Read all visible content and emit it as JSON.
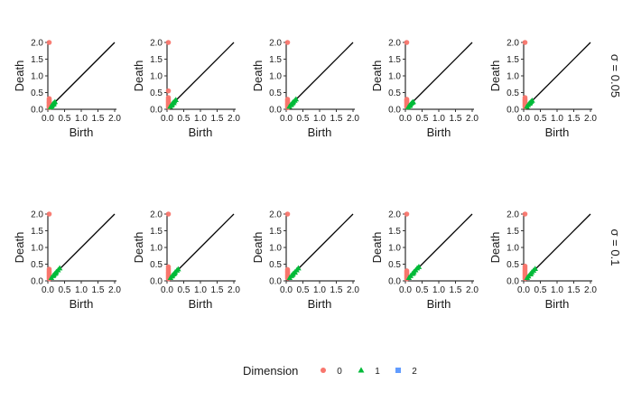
{
  "chart_data": {
    "type": "scatter",
    "layout": {
      "rows": 2,
      "cols": 5
    },
    "xlabel": "Birth",
    "ylabel": "Death",
    "xlim": [
      0,
      2
    ],
    "ylim": [
      0,
      2
    ],
    "x_ticks": [
      "0.0",
      "0.5",
      "1.0",
      "1.5",
      "2.0"
    ],
    "y_ticks": [
      "0.0",
      "0.5",
      "1.0",
      "1.5",
      "2.0"
    ],
    "x_tick_values": [
      0,
      0.5,
      1,
      1.5,
      2
    ],
    "y_tick_values": [
      0,
      0.5,
      1,
      1.5,
      2
    ],
    "diagonal": true,
    "grid": false,
    "row_labels": [
      "σ = 0.05",
      "σ = 0.1"
    ],
    "legend": {
      "title": "Dimension",
      "position": "bottom",
      "entries": [
        {
          "label": "0",
          "shape": "circle",
          "color": "#F8766D"
        },
        {
          "label": "1",
          "shape": "triangle",
          "color": "#00BA38"
        },
        {
          "label": "2",
          "shape": "square",
          "color": "#619CFF"
        }
      ]
    },
    "panels": [
      {
        "row": 0,
        "col": 0,
        "dim0": [
          [
            0,
            2.0
          ],
          [
            0,
            0.32
          ],
          [
            0,
            0.28
          ],
          [
            0,
            0.25
          ],
          [
            0,
            0.22
          ],
          [
            0,
            0.2
          ],
          [
            0,
            0.18
          ],
          [
            0,
            0.15
          ],
          [
            0,
            0.12
          ],
          [
            0,
            0.1
          ],
          [
            0,
            0.08
          ],
          [
            0,
            0.05
          ]
        ],
        "dim1": [
          [
            0.03,
            0.06
          ],
          [
            0.06,
            0.1
          ],
          [
            0.08,
            0.13
          ],
          [
            0.1,
            0.16
          ],
          [
            0.13,
            0.19
          ],
          [
            0.16,
            0.22
          ],
          [
            0.12,
            0.15
          ],
          [
            0.05,
            0.09
          ]
        ]
      },
      {
        "row": 0,
        "col": 1,
        "dim0": [
          [
            0,
            2.0
          ],
          [
            0,
            0.55
          ],
          [
            0,
            0.35
          ],
          [
            0,
            0.3
          ],
          [
            0,
            0.26
          ],
          [
            0,
            0.22
          ],
          [
            0,
            0.18
          ],
          [
            0,
            0.14
          ],
          [
            0,
            0.1
          ],
          [
            0,
            0.06
          ]
        ],
        "dim1": [
          [
            0.04,
            0.08
          ],
          [
            0.07,
            0.12
          ],
          [
            0.1,
            0.16
          ],
          [
            0.13,
            0.2
          ],
          [
            0.17,
            0.24
          ],
          [
            0.21,
            0.28
          ],
          [
            0.15,
            0.19
          ],
          [
            0.09,
            0.12
          ]
        ]
      },
      {
        "row": 0,
        "col": 2,
        "dim0": [
          [
            0,
            2.0
          ],
          [
            0,
            0.3
          ],
          [
            0,
            0.26
          ],
          [
            0,
            0.22
          ],
          [
            0,
            0.18
          ],
          [
            0,
            0.15
          ],
          [
            0,
            0.12
          ],
          [
            0,
            0.08
          ],
          [
            0,
            0.05
          ]
        ],
        "dim1": [
          [
            0.04,
            0.08
          ],
          [
            0.08,
            0.13
          ],
          [
            0.12,
            0.18
          ],
          [
            0.16,
            0.22
          ],
          [
            0.2,
            0.26
          ],
          [
            0.24,
            0.3
          ],
          [
            0.14,
            0.19
          ],
          [
            0.1,
            0.14
          ]
        ]
      },
      {
        "row": 0,
        "col": 3,
        "dim0": [
          [
            0,
            2.0
          ],
          [
            0,
            0.3
          ],
          [
            0,
            0.27
          ],
          [
            0,
            0.24
          ],
          [
            0,
            0.2
          ],
          [
            0,
            0.17
          ],
          [
            0,
            0.13
          ],
          [
            0,
            0.1
          ],
          [
            0,
            0.07
          ]
        ],
        "dim1": [
          [
            0.03,
            0.06
          ],
          [
            0.06,
            0.1
          ],
          [
            0.09,
            0.13
          ],
          [
            0.12,
            0.17
          ],
          [
            0.15,
            0.2
          ],
          [
            0.18,
            0.22
          ],
          [
            0.08,
            0.11
          ]
        ]
      },
      {
        "row": 0,
        "col": 4,
        "dim0": [
          [
            0,
            2.0
          ],
          [
            0,
            0.35
          ],
          [
            0,
            0.3
          ],
          [
            0,
            0.27
          ],
          [
            0,
            0.23
          ],
          [
            0,
            0.19
          ],
          [
            0,
            0.15
          ],
          [
            0,
            0.11
          ],
          [
            0,
            0.07
          ]
        ],
        "dim1": [
          [
            0.04,
            0.08
          ],
          [
            0.08,
            0.13
          ],
          [
            0.11,
            0.17
          ],
          [
            0.14,
            0.2
          ],
          [
            0.17,
            0.23
          ],
          [
            0.2,
            0.26
          ],
          [
            0.13,
            0.18
          ]
        ]
      },
      {
        "row": 1,
        "col": 0,
        "dim0": [
          [
            0,
            2.0
          ],
          [
            0,
            0.35
          ],
          [
            0,
            0.3
          ],
          [
            0,
            0.26
          ],
          [
            0,
            0.22
          ],
          [
            0,
            0.18
          ],
          [
            0,
            0.14
          ],
          [
            0,
            0.1
          ],
          [
            0,
            0.06
          ]
        ],
        "dim1": [
          [
            0.05,
            0.09
          ],
          [
            0.1,
            0.15
          ],
          [
            0.15,
            0.21
          ],
          [
            0.2,
            0.27
          ],
          [
            0.25,
            0.32
          ],
          [
            0.3,
            0.38
          ],
          [
            0.18,
            0.23
          ],
          [
            0.12,
            0.17
          ]
        ]
      },
      {
        "row": 1,
        "col": 1,
        "dim0": [
          [
            0,
            2.0
          ],
          [
            0,
            0.42
          ],
          [
            0,
            0.36
          ],
          [
            0,
            0.31
          ],
          [
            0,
            0.26
          ],
          [
            0,
            0.22
          ],
          [
            0,
            0.18
          ],
          [
            0,
            0.14
          ],
          [
            0,
            0.1
          ],
          [
            0,
            0.06
          ]
        ],
        "dim1": [
          [
            0.05,
            0.09
          ],
          [
            0.09,
            0.14
          ],
          [
            0.14,
            0.2
          ],
          [
            0.19,
            0.26
          ],
          [
            0.24,
            0.31
          ],
          [
            0.28,
            0.35
          ],
          [
            0.17,
            0.22
          ],
          [
            0.11,
            0.16
          ]
        ]
      },
      {
        "row": 1,
        "col": 2,
        "dim0": [
          [
            0,
            2.0
          ],
          [
            0,
            0.34
          ],
          [
            0,
            0.29
          ],
          [
            0,
            0.25
          ],
          [
            0,
            0.2
          ],
          [
            0,
            0.16
          ],
          [
            0,
            0.12
          ],
          [
            0,
            0.08
          ]
        ],
        "dim1": [
          [
            0.05,
            0.09
          ],
          [
            0.1,
            0.15
          ],
          [
            0.15,
            0.21
          ],
          [
            0.2,
            0.26
          ],
          [
            0.26,
            0.32
          ],
          [
            0.31,
            0.38
          ],
          [
            0.21,
            0.25
          ],
          [
            0.13,
            0.18
          ]
        ]
      },
      {
        "row": 1,
        "col": 3,
        "dim0": [
          [
            0,
            2.0
          ],
          [
            0,
            0.3
          ],
          [
            0,
            0.26
          ],
          [
            0,
            0.22
          ],
          [
            0,
            0.18
          ],
          [
            0,
            0.14
          ],
          [
            0,
            0.1
          ],
          [
            0,
            0.06
          ]
        ],
        "dim1": [
          [
            0.05,
            0.09
          ],
          [
            0.1,
            0.15
          ],
          [
            0.15,
            0.21
          ],
          [
            0.2,
            0.27
          ],
          [
            0.25,
            0.32
          ],
          [
            0.3,
            0.38
          ],
          [
            0.35,
            0.42
          ],
          [
            0.18,
            0.23
          ]
        ]
      },
      {
        "row": 1,
        "col": 4,
        "dim0": [
          [
            0,
            2.0
          ],
          [
            0,
            0.44
          ],
          [
            0,
            0.38
          ],
          [
            0,
            0.32
          ],
          [
            0,
            0.27
          ],
          [
            0,
            0.22
          ],
          [
            0,
            0.17
          ],
          [
            0,
            0.12
          ],
          [
            0,
            0.07
          ]
        ],
        "dim1": [
          [
            0.05,
            0.09
          ],
          [
            0.09,
            0.14
          ],
          [
            0.14,
            0.2
          ],
          [
            0.19,
            0.26
          ],
          [
            0.24,
            0.31
          ],
          [
            0.29,
            0.36
          ],
          [
            0.16,
            0.21
          ]
        ]
      }
    ]
  }
}
